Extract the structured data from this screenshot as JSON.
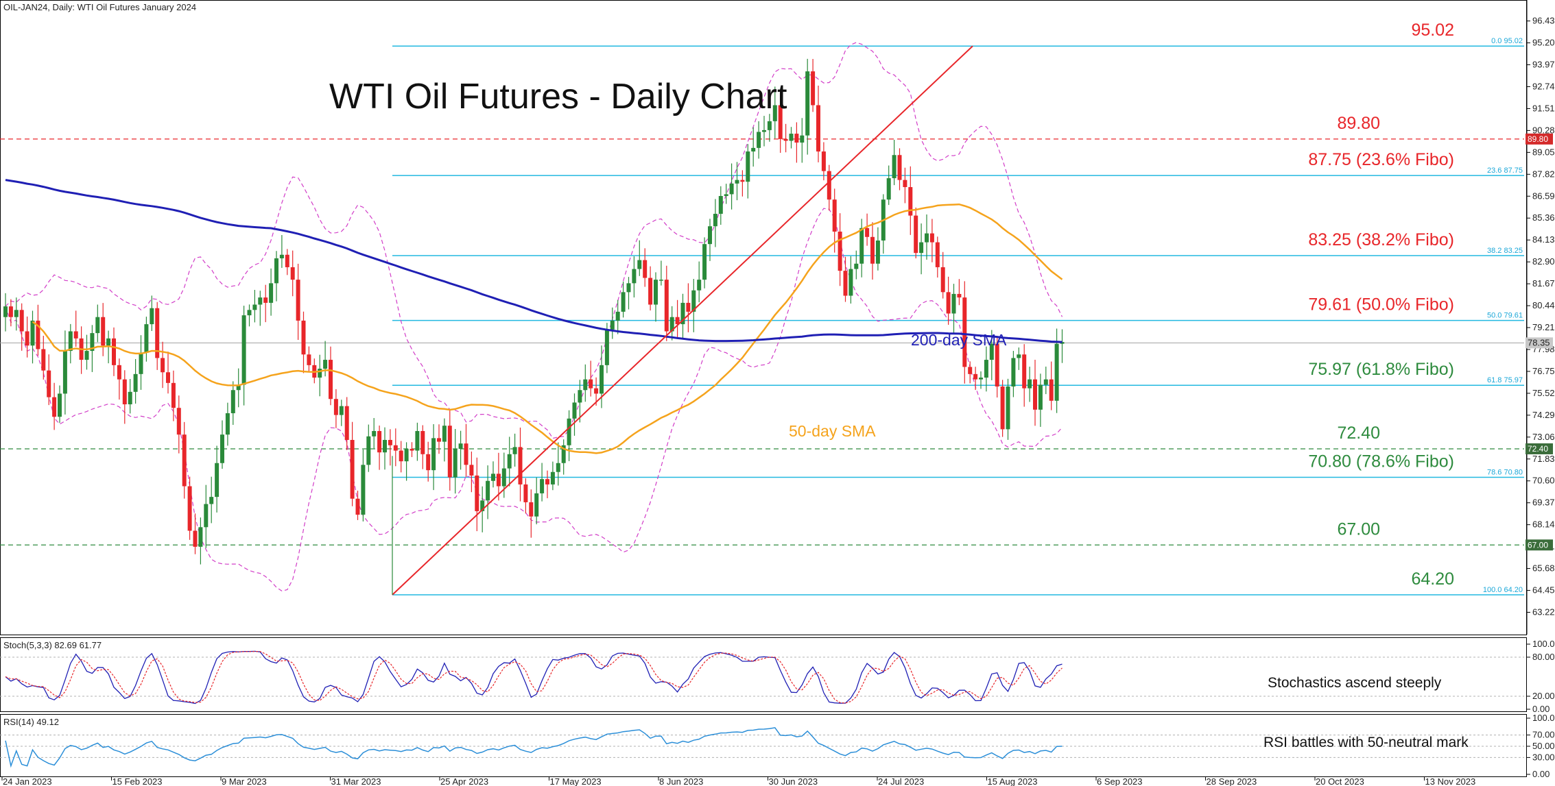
{
  "chart_data": {
    "type": "candlestick",
    "symbol_header": "OIL-JAN24, Daily:  WTI Oil Futures January 2024",
    "title": "WTI Oil Futures - Daily Chart",
    "price_ticks": [
      "96.43",
      "95.20",
      "93.97",
      "92.74",
      "91.51",
      "90.28",
      "89.05",
      "87.82",
      "86.59",
      "85.36",
      "84.13",
      "82.90",
      "81.67",
      "80.44",
      "79.21",
      "77.98",
      "76.75",
      "75.52",
      "74.29",
      "73.06",
      "71.83",
      "70.60",
      "69.37",
      "68.14",
      "66.91",
      "65.68",
      "64.45",
      "63.22"
    ],
    "price_range": [
      62.2,
      97.3
    ],
    "x_labels": [
      "24 Jan 2023",
      "15 Feb 2023",
      "9 Mar 2023",
      "31 Mar 2023",
      "25 Apr 2023",
      "17 May 2023",
      "8 Jun 2023",
      "30 Jun 2023",
      "24 Jul 2023",
      "15 Aug 2023",
      "6 Sep 2023",
      "28 Sep 2023",
      "20 Oct 2023",
      "13 Nov 2023"
    ],
    "fib_levels": [
      {
        "price": 95.02,
        "label": "95.02",
        "axis_label": "0.0 95.02",
        "color": "#e8262a"
      },
      {
        "price": 87.75,
        "label": "87.75 (23.6% Fibo)",
        "axis_label": "23.6 87.75",
        "color": "#e8262a"
      },
      {
        "price": 83.25,
        "label": "83.25 (38.2% Fibo)",
        "axis_label": "38.2 83.25",
        "color": "#e8262a"
      },
      {
        "price": 79.61,
        "label": "79.61 (50.0% Fibo)",
        "axis_label": "50.0 79.61",
        "color": "#e8262a"
      },
      {
        "price": 75.97,
        "label": "75.97 (61.8% Fibo)",
        "axis_label": "61.8 75.97",
        "color": "#2e8b3e"
      },
      {
        "price": 70.8,
        "label": "70.80 (78.6% Fibo)",
        "axis_label": "78.6 70.80",
        "color": "#2e8b3e"
      },
      {
        "price": 64.2,
        "label": "64.20",
        "axis_label": "100.0 64.20",
        "color": "#2e8b3e"
      }
    ],
    "horizontal_levels": [
      {
        "price": 89.8,
        "label": "89.80",
        "tag": "89.80",
        "color": "#e8262a",
        "tag_color": "#d42a2a"
      },
      {
        "price": 72.4,
        "label": "72.40",
        "tag": "72.40",
        "color": "#2e8b3e",
        "tag_color": "#3b6d3b"
      },
      {
        "price": 67.0,
        "label": "67.00",
        "tag": "67.00",
        "color": "#2e8b3e",
        "tag_color": "#3b6d3b"
      }
    ],
    "current_price": {
      "price": 78.35,
      "tag": "78.35"
    },
    "sma200_label": "200-day SMA",
    "sma50_label": "50-day SMA",
    "sma200_color": "#1f1fb4",
    "sma50_color": "#f5a31c",
    "bull_color": "#2a8a3a",
    "bear_color": "#e8262a",
    "closes": [
      80.4,
      79.8,
      80.2,
      79.0,
      78.2,
      79.6,
      78.0,
      76.8,
      75.3,
      74.2,
      75.5,
      77.9,
      79.0,
      78.6,
      77.4,
      77.9,
      78.9,
      79.8,
      78.2,
      78.6,
      77.1,
      76.3,
      74.9,
      75.6,
      76.6,
      77.8,
      79.4,
      80.3,
      77.5,
      76.7,
      76.1,
      74.7,
      73.2,
      70.3,
      67.8,
      66.9,
      68.0,
      69.3,
      69.7,
      71.6,
      73.2,
      74.4,
      75.7,
      76.0,
      79.9,
      80.2,
      80.5,
      80.9,
      80.6,
      81.7,
      83.1,
      83.3,
      82.6,
      81.9,
      79.6,
      77.7,
      77.1,
      76.4,
      76.9,
      77.4,
      75.2,
      74.3,
      74.8,
      72.9,
      69.6,
      68.7,
      71.5,
      73.1,
      73.4,
      72.2,
      72.9,
      72.6,
      72.3,
      71.7,
      72.4,
      72.3,
      73.4,
      72.1,
      71.2,
      73.0,
      72.8,
      73.7,
      70.8,
      72.4,
      72.7,
      71.5,
      70.9,
      68.9,
      69.5,
      70.6,
      71.0,
      70.3,
      71.3,
      72.1,
      72.5,
      70.4,
      69.4,
      68.6,
      69.9,
      70.7,
      70.4,
      71.1,
      71.6,
      72.6,
      74.1,
      75.0,
      75.7,
      76.3,
      75.8,
      75.5,
      77.1,
      79.1,
      79.6,
      80.1,
      81.2,
      81.7,
      82.5,
      83.0,
      82.0,
      80.5,
      81.9,
      81.9,
      79.0,
      79.8,
      79.4,
      80.6,
      80.1,
      81.3,
      81.9,
      83.9,
      84.9,
      85.6,
      86.6,
      86.7,
      87.3,
      87.5,
      87.4,
      89.1,
      89.3,
      90.2,
      90.3,
      90.8,
      91.7,
      89.8,
      89.7,
      90.1,
      89.6,
      90.0,
      93.6,
      91.7,
      89.1,
      88.0,
      86.4,
      84.6,
      82.4,
      81.0,
      82.5,
      82.8,
      84.8,
      84.3,
      82.8,
      84.1,
      86.4,
      87.6,
      88.9,
      87.5,
      87.1,
      85.5,
      83.4,
      84.0,
      84.5,
      84.0,
      82.6,
      81.2,
      80.0,
      81.1,
      80.9,
      77.0,
      76.6,
      76.3,
      76.4,
      77.4,
      78.3,
      75.9,
      73.5,
      75.9,
      77.5,
      77.7,
      75.8,
      76.3,
      74.6,
      76.0,
      76.3,
      75.1,
      78.3,
      78.4
    ]
  },
  "stoch": {
    "title": "Stoch(5,3,3) 82.69 61.77",
    "ticks": [
      "100.00",
      "80.00",
      "20.00",
      "0.00"
    ],
    "annotation": "Stochastics ascend steeply",
    "k_color": "#1f1fb4",
    "d_color": "#e8262a"
  },
  "rsi": {
    "title": "RSI(14) 49.12",
    "ticks": [
      "100.00",
      "70.00",
      "50.00",
      "30.00",
      "0.00"
    ],
    "annotation": "RSI battles with 50-neutral mark",
    "line_color": "#2a8ed8"
  }
}
